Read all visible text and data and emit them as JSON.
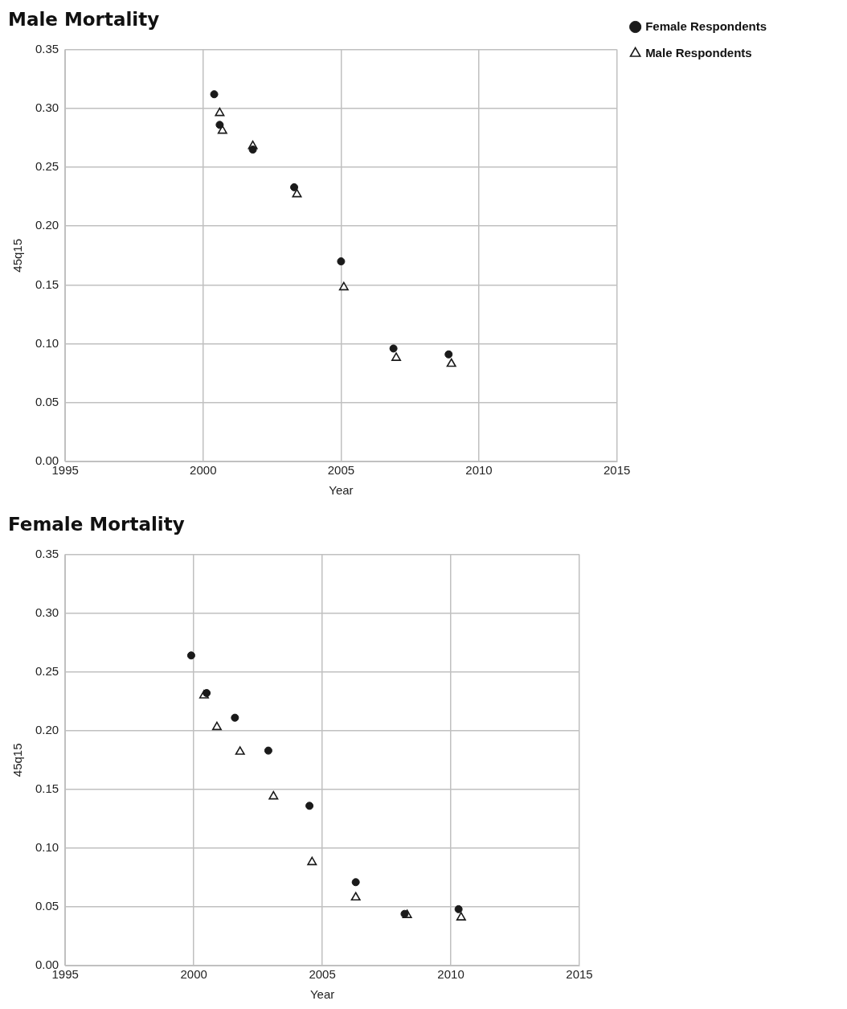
{
  "chart_data": [
    {
      "type": "scatter",
      "title": "Male Mortality",
      "xlabel": "Year",
      "ylabel": "45q15",
      "xlim": [
        1995,
        2015
      ],
      "xticks": [
        1995,
        2000,
        2005,
        2010,
        2015
      ],
      "ylim": [
        0,
        0.35
      ],
      "yticks": [
        {
          "value": 0,
          "label": "0.00"
        },
        {
          "value": 0.05,
          "label": "0.05"
        },
        {
          "value": 0.1,
          "label": "0.10"
        },
        {
          "value": 0.15,
          "label": "0.15"
        },
        {
          "value": 0.2,
          "label": "0.20"
        },
        {
          "value": 0.25,
          "label": "0.25"
        },
        {
          "value": 0.3,
          "label": "0.30"
        },
        {
          "value": 0.35,
          "label": "0.35"
        }
      ],
      "grid": true,
      "legend": "right",
      "series": [
        {
          "name": "Female Respondents",
          "color": "#1a1a1a",
          "marker": "circle",
          "x": [
            2000.4,
            2000.6,
            2001.8,
            2003.3,
            2005.0,
            2006.9,
            2008.9
          ],
          "values": [
            0.312,
            0.286,
            0.265,
            0.233,
            0.17,
            0.096,
            0.091
          ]
        },
        {
          "name": "Male Respondents",
          "color": "#1a1a1a",
          "marker": "triangle",
          "x": [
            2000.6,
            2000.7,
            2001.8,
            2003.4,
            2005.1,
            2007.0,
            2009.0
          ],
          "values": [
            0.296,
            0.281,
            0.268,
            0.227,
            0.148,
            0.088,
            0.083
          ]
        }
      ]
    },
    {
      "type": "scatter",
      "title": "Female Mortality",
      "xlabel": "Year",
      "ylabel": "45q15",
      "xlim": [
        1995,
        2015
      ],
      "xticks": [
        1995,
        2000,
        2005,
        2010,
        2015
      ],
      "ylim": [
        0,
        0.35
      ],
      "yticks": [
        {
          "value": 0,
          "label": "0.00"
        },
        {
          "value": 0.05,
          "label": "0.05"
        },
        {
          "value": 0.1,
          "label": "0.10"
        },
        {
          "value": 0.15,
          "label": "0.15"
        },
        {
          "value": 0.2,
          "label": "0.20"
        },
        {
          "value": 0.25,
          "label": "0.25"
        },
        {
          "value": 0.3,
          "label": "0.30"
        },
        {
          "value": 0.35,
          "label": "0.35"
        }
      ],
      "grid": true,
      "series": [
        {
          "color": "#1a1a1a",
          "marker": "circle",
          "x": [
            1999.9,
            2000.5,
            2001.6,
            2002.9,
            2004.5,
            2006.3,
            2008.2,
            2010.3
          ],
          "values": [
            0.264,
            0.232,
            0.211,
            0.183,
            0.136,
            0.071,
            0.044,
            0.048
          ]
        },
        {
          "color": "#1a1a1a",
          "marker": "triangle",
          "x": [
            2000.4,
            2000.9,
            2001.8,
            2003.1,
            2004.6,
            2006.3,
            2008.3,
            2010.4
          ],
          "values": [
            0.23,
            0.203,
            0.182,
            0.144,
            0.088,
            0.058,
            0.043,
            0.041
          ]
        }
      ]
    }
  ]
}
